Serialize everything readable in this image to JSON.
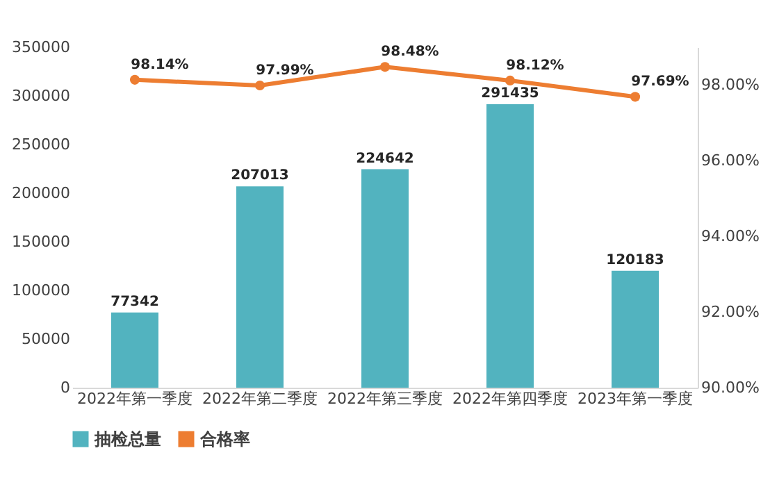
{
  "chart_data": {
    "type": "bar",
    "categories": [
      "2022年第一季度",
      "2022年第二季度",
      "2022年第三季度",
      "2022年第四季度",
      "2023年第一季度"
    ],
    "series": [
      {
        "name": "抽检总量",
        "color": "#52b3bf",
        "values": [
          77342,
          207013,
          224642,
          291435,
          120183
        ]
      },
      {
        "name": "合格率",
        "type": "line",
        "axis": "y2",
        "color": "#ed7d31",
        "values": [
          98.14,
          97.99,
          98.48,
          98.12,
          97.69
        ],
        "value_labels": [
          "98.14%",
          "97.99%",
          "98.48%",
          "98.12%",
          "97.69%"
        ]
      }
    ],
    "ylim": [
      0,
      350000
    ],
    "yticks": [
      0,
      50000,
      100000,
      150000,
      200000,
      250000,
      300000,
      350000
    ],
    "y2lim": [
      90,
      99
    ],
    "y2ticks": [
      {
        "value": 90,
        "label": "90.00%"
      },
      {
        "value": 92,
        "label": "92.00%"
      },
      {
        "value": 94,
        "label": "94.00%"
      },
      {
        "value": 96,
        "label": "96.00%"
      },
      {
        "value": 98,
        "label": "98.00%"
      }
    ],
    "data_labels": true,
    "marker": "circle",
    "grid": false,
    "legend": "bottom"
  }
}
